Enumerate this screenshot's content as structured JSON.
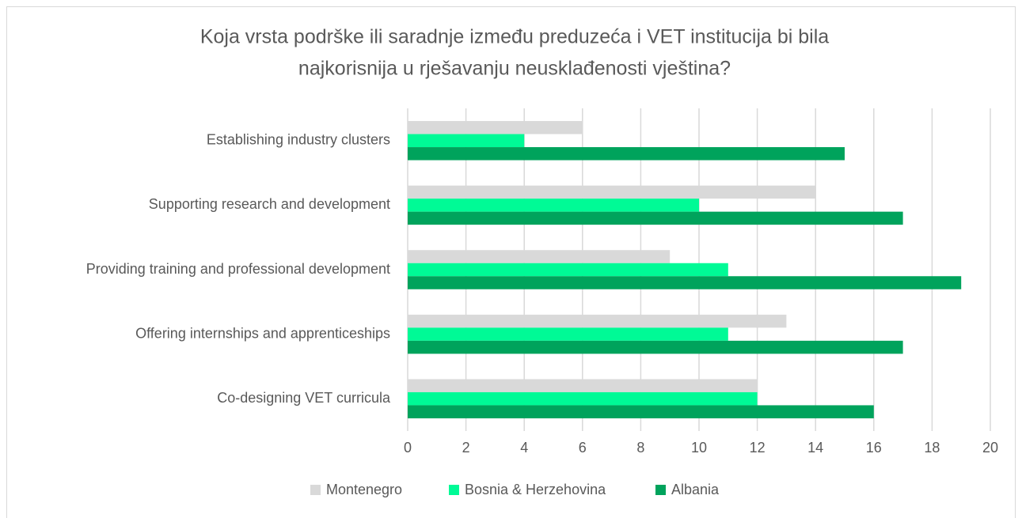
{
  "chart_data": {
    "type": "bar",
    "orientation": "horizontal",
    "title": [
      "Koja vrsta podrške ili saradnje između preduzeća i VET institucija bi bila",
      "najkorisnija u rješavanju neusklađenosti vještina?"
    ],
    "categories": [
      "Establishing industry clusters",
      "Supporting research and development",
      "Providing training and professional development",
      "Offering internships and apprenticeships",
      "Co-designing VET curricula"
    ],
    "series": [
      {
        "name": "Montenegro",
        "color": "#d9d9d9",
        "values": [
          6,
          14,
          9,
          13,
          12
        ]
      },
      {
        "name": "Bosnia & Herzehovina",
        "color": "#00fa96",
        "values": [
          4,
          10,
          11,
          11,
          12
        ]
      },
      {
        "name": "Albania",
        "color": "#00a35c",
        "values": [
          15,
          17,
          19,
          17,
          16
        ]
      }
    ],
    "xlim": [
      0,
      20
    ],
    "xticks": [
      0,
      2,
      4,
      6,
      8,
      10,
      12,
      14,
      16,
      18,
      20
    ],
    "grid": true,
    "legend": "bottom"
  }
}
